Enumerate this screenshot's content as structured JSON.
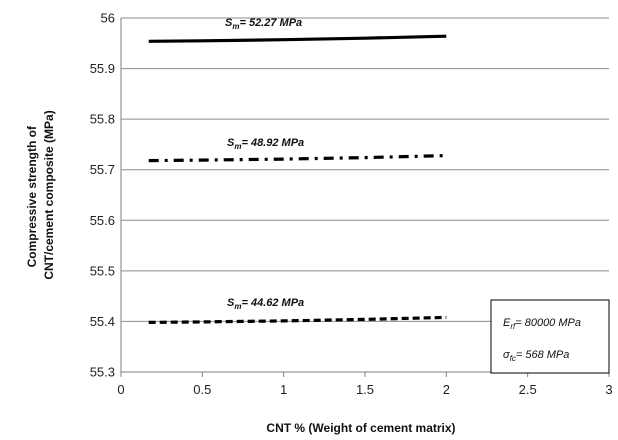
{
  "chart_data": {
    "type": "line",
    "title": "",
    "xlabel": "CNT % (Weight of cement matrix)",
    "ylabel_lines": [
      "Compressive strength of",
      "CNT/cement composite (MPa)"
    ],
    "xlim": [
      0,
      3
    ],
    "ylim": [
      55.3,
      56
    ],
    "x_ticks": [
      "0",
      "0.5",
      "1",
      "1.5",
      "2",
      "2.5",
      "3"
    ],
    "y_ticks": [
      "55.3",
      "55.4",
      "55.5",
      "55.6",
      "55.7",
      "55.8",
      "55.9",
      "56"
    ],
    "grid": "horizontal",
    "series": [
      {
        "label_prefix": "S",
        "label_sub": "m",
        "label_suffix": "= 52.27 MPa",
        "style": "solid",
        "x": [
          0.17,
          0.5,
          1,
          1.5,
          2
        ],
        "y": [
          55.954,
          55.955,
          55.957,
          55.96,
          55.964
        ]
      },
      {
        "label_prefix": "S",
        "label_sub": "m",
        "label_suffix": "= 48.92 MPa",
        "style": "dash-dot",
        "x": [
          0.17,
          0.5,
          1,
          1.5,
          2
        ],
        "y": [
          55.718,
          55.719,
          55.721,
          55.724,
          55.728
        ]
      },
      {
        "label_prefix": "S",
        "label_sub": "m",
        "label_suffix": "= 44.62 MPa",
        "style": "dashed",
        "x": [
          0.17,
          0.5,
          1,
          1.5,
          2
        ],
        "y": [
          55.398,
          55.399,
          55.401,
          55.404,
          55.408
        ]
      }
    ],
    "annotation_box": {
      "line1_prefix": "E",
      "line1_sub": "rf",
      "line1_suffix": "= 80000 MPa",
      "line2_prefix": "σ",
      "line2_sub": "fc",
      "line2_suffix": "= 568 MPa",
      "placement": "bottom-right"
    },
    "colors": {
      "line": "#000000",
      "grid": "#8c8c8c",
      "axis": "#7f7f7f"
    }
  }
}
